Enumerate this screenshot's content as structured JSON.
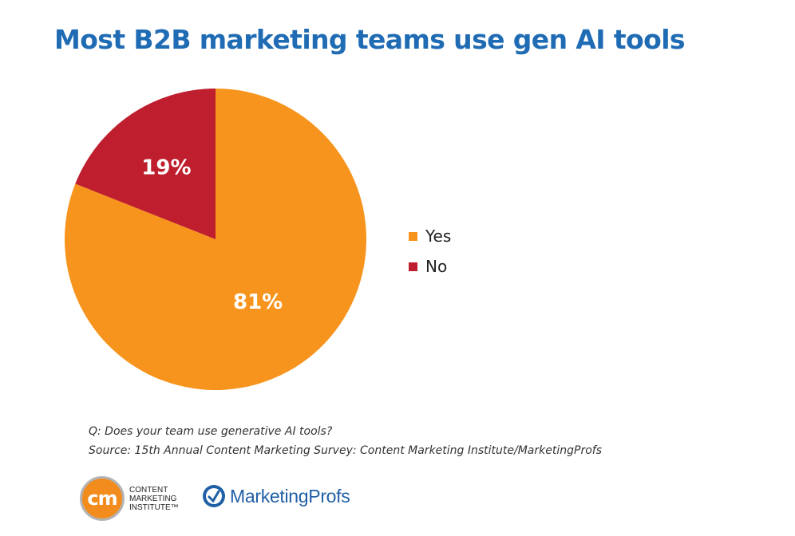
{
  "chart_data": {
    "type": "pie",
    "title": "Most B2B marketing teams use gen AI tools",
    "categories": [
      "Yes",
      "No"
    ],
    "values": [
      81,
      19
    ],
    "labels": [
      "81%",
      "19%"
    ],
    "colors": [
      "#f7941d",
      "#be1e2d"
    ],
    "legend_placement": "right"
  },
  "notes": {
    "question": "Q: Does your team use generative AI tools?",
    "source": "Source: 15th Annual Content Marketing Survey: Content Marketing Institute/MarketingProfs"
  },
  "logos": {
    "cmi_mark": "cm",
    "cmi_name": "CONTENT MARKETING INSTITUTE™",
    "mp_name": "MarketingProfs",
    "mp_icon": "marketingprofs-globe-icon"
  }
}
